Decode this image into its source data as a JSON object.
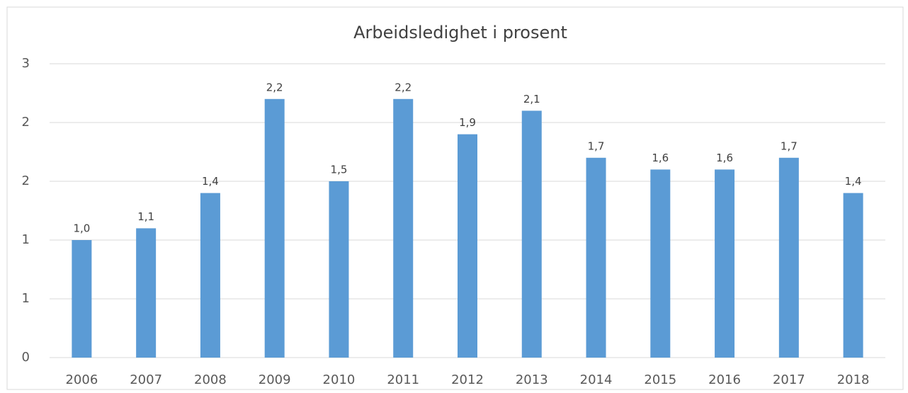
{
  "chart_data": {
    "type": "bar",
    "title": "Arbeidsledighet i prosent",
    "categories": [
      "2006",
      "2007",
      "2008",
      "2009",
      "2010",
      "2011",
      "2012",
      "2013",
      "2014",
      "2015",
      "2016",
      "2017",
      "2018"
    ],
    "values": [
      1.0,
      1.1,
      1.4,
      2.2,
      1.5,
      2.2,
      1.9,
      2.1,
      1.7,
      1.6,
      1.6,
      1.7,
      1.4
    ],
    "value_labels": [
      "1,0",
      "1,1",
      "1,4",
      "2,2",
      "1,5",
      "2,2",
      "1,9",
      "2,1",
      "1,7",
      "1,6",
      "1,6",
      "1,7",
      "1,4"
    ],
    "color": "#5b9bd5",
    "ylim": [
      0,
      2.5
    ],
    "yticks": [
      0,
      {
        "value": 0.5,
        "label": "1"
      },
      1,
      {
        "value": 1.5,
        "label": "2"
      },
      2,
      {
        "value": 2.5,
        "label": "3"
      }
    ],
    "grid": true
  }
}
